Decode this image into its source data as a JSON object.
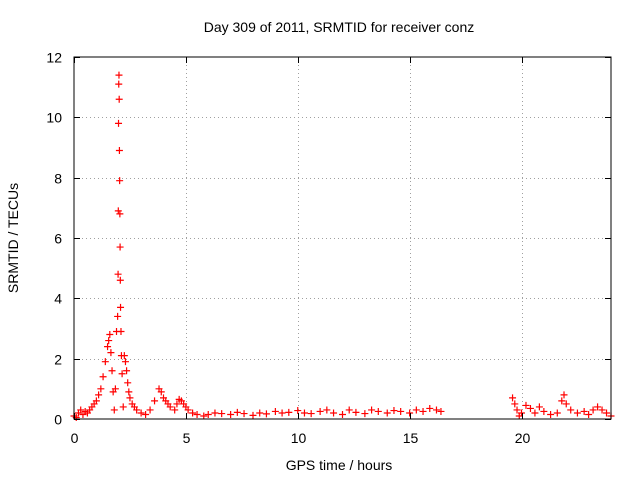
{
  "chart_data": {
    "type": "scatter",
    "title": "Day 309 of 2011, SRMTID for receiver conz",
    "xlabel": "GPS time / hours",
    "ylabel": "SRMTID / TECUs",
    "xlim": [
      0,
      24
    ],
    "ylim": [
      0,
      12
    ],
    "xticks": [
      0,
      5,
      10,
      15,
      20
    ],
    "xtick_labels": [
      "0",
      "5",
      "10",
      "15",
      "20"
    ],
    "yticks": [
      0,
      2,
      4,
      6,
      8,
      10,
      12
    ],
    "ytick_labels": [
      "0",
      "2",
      "4",
      "6",
      "8",
      "10",
      "12"
    ],
    "grid": true,
    "legend": "none",
    "marker": "+",
    "color": "#ff0000",
    "series": [
      {
        "name": "SRMTID",
        "x": [
          0.0,
          0.1,
          0.2,
          0.3,
          0.4,
          0.5,
          0.6,
          0.7,
          0.8,
          0.9,
          1.0,
          1.1,
          1.2,
          1.3,
          1.4,
          1.5,
          1.55,
          1.6,
          1.65,
          1.7,
          1.75,
          1.8,
          1.85,
          1.9,
          1.95,
          1.97,
          1.98,
          1.99,
          2.0,
          2.01,
          2.02,
          2.03,
          2.04,
          2.05,
          2.06,
          2.07,
          2.08,
          2.1,
          2.12,
          2.15,
          2.2,
          2.25,
          2.3,
          2.35,
          2.4,
          2.45,
          2.5,
          2.6,
          2.7,
          2.8,
          3.0,
          3.2,
          3.4,
          3.6,
          3.8,
          3.9,
          4.0,
          4.1,
          4.2,
          4.3,
          4.5,
          4.6,
          4.7,
          4.8,
          4.9,
          5.0,
          5.1,
          5.3,
          5.5,
          5.8,
          6.0,
          6.3,
          6.6,
          7.0,
          7.3,
          7.6,
          8.0,
          8.3,
          8.6,
          9.0,
          9.3,
          9.6,
          10.0,
          10.3,
          10.6,
          11.0,
          11.3,
          11.6,
          12.0,
          12.3,
          12.6,
          13.0,
          13.3,
          13.6,
          14.0,
          14.3,
          14.6,
          15.0,
          15.3,
          15.6,
          15.9,
          16.2,
          16.4,
          19.6,
          19.7,
          19.8,
          19.9,
          20.0,
          20.2,
          20.4,
          20.6,
          20.8,
          21.0,
          21.3,
          21.6,
          21.8,
          21.9,
          22.0,
          22.2,
          22.5,
          22.8,
          23.0,
          23.2,
          23.4,
          23.6,
          23.8,
          24.0
        ],
        "y": [
          0.1,
          0.05,
          0.2,
          0.3,
          0.15,
          0.25,
          0.2,
          0.3,
          0.4,
          0.5,
          0.6,
          0.8,
          1.0,
          1.4,
          1.9,
          2.4,
          2.6,
          2.8,
          2.2,
          1.6,
          0.9,
          0.3,
          1.0,
          2.9,
          3.4,
          4.8,
          6.9,
          9.8,
          11.1,
          11.4,
          10.6,
          8.9,
          7.9,
          6.8,
          5.7,
          4.6,
          3.7,
          2.9,
          2.1,
          1.5,
          0.4,
          2.1,
          1.9,
          1.6,
          1.2,
          0.9,
          0.7,
          0.5,
          0.4,
          0.3,
          0.2,
          0.15,
          0.3,
          0.6,
          1.0,
          0.9,
          0.7,
          0.6,
          0.5,
          0.4,
          0.3,
          0.5,
          0.65,
          0.6,
          0.5,
          0.4,
          0.3,
          0.2,
          0.15,
          0.1,
          0.15,
          0.2,
          0.18,
          0.15,
          0.22,
          0.18,
          0.12,
          0.2,
          0.17,
          0.25,
          0.2,
          0.22,
          0.28,
          0.2,
          0.18,
          0.25,
          0.3,
          0.2,
          0.15,
          0.3,
          0.22,
          0.18,
          0.3,
          0.25,
          0.2,
          0.28,
          0.25,
          0.2,
          0.3,
          0.25,
          0.35,
          0.3,
          0.25,
          0.7,
          0.5,
          0.3,
          0.1,
          0.2,
          0.45,
          0.35,
          0.2,
          0.4,
          0.25,
          0.15,
          0.2,
          0.6,
          0.8,
          0.5,
          0.3,
          0.2,
          0.25,
          0.15,
          0.3,
          0.4,
          0.3,
          0.2,
          0.1
        ]
      }
    ]
  }
}
